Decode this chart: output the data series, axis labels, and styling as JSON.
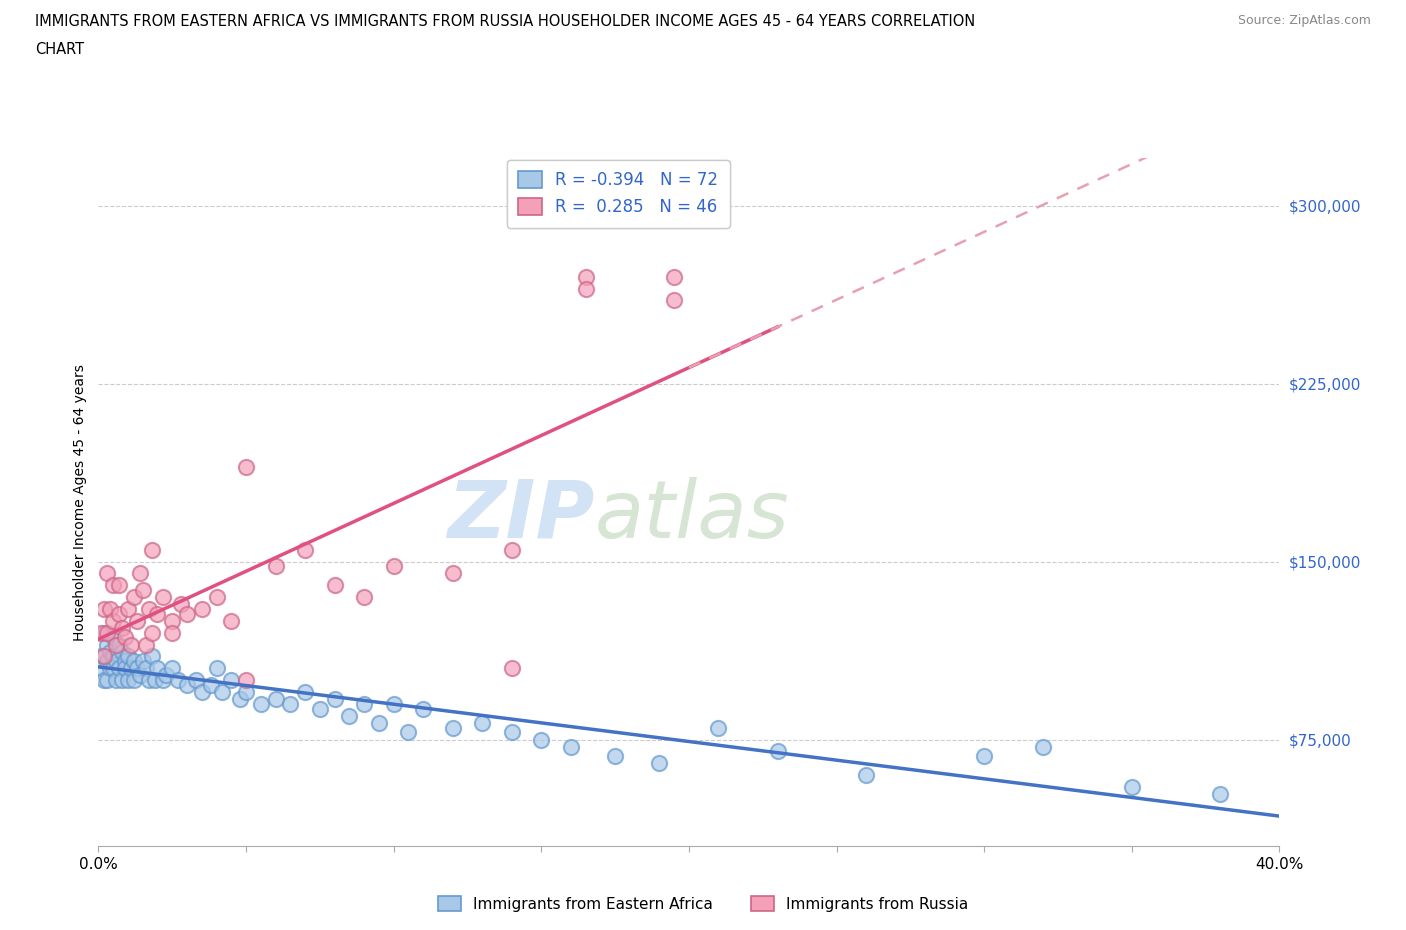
{
  "title_line1": "IMMIGRANTS FROM EASTERN AFRICA VS IMMIGRANTS FROM RUSSIA HOUSEHOLDER INCOME AGES 45 - 64 YEARS CORRELATION",
  "title_line2": "CHART",
  "source": "Source: ZipAtlas.com",
  "ylabel": "Householder Income Ages 45 - 64 years",
  "xlim": [
    0.0,
    0.4
  ],
  "ylim": [
    30000,
    320000
  ],
  "ytick_vals": [
    75000,
    150000,
    225000,
    300000
  ],
  "ytick_labels": [
    "$75,000",
    "$150,000",
    "$225,000",
    "$300,000"
  ],
  "xtick_vals": [
    0.0,
    0.05,
    0.1,
    0.15,
    0.2,
    0.25,
    0.3,
    0.35,
    0.4
  ],
  "xtick_labels": [
    "0.0%",
    "",
    "",
    "",
    "",
    "",
    "",
    "",
    "40.0%"
  ],
  "color_blue": "#a8c8e8",
  "color_pink": "#f4a0b8",
  "trendline_blue_color": "#4472c4",
  "trendline_pink_solid_color": "#e05080",
  "trendline_pink_dashed_color": "#e8a0b0",
  "legend_text_color": "#3366cc",
  "legend_r1": "R = -0.394   N = 72",
  "legend_r2": "R =  0.285   N = 46",
  "ea_scatter_x": [
    0.001,
    0.001,
    0.002,
    0.002,
    0.003,
    0.003,
    0.003,
    0.004,
    0.004,
    0.005,
    0.005,
    0.005,
    0.006,
    0.006,
    0.007,
    0.007,
    0.008,
    0.008,
    0.009,
    0.009,
    0.01,
    0.01,
    0.011,
    0.012,
    0.012,
    0.013,
    0.014,
    0.015,
    0.016,
    0.017,
    0.018,
    0.019,
    0.02,
    0.022,
    0.023,
    0.025,
    0.027,
    0.03,
    0.033,
    0.035,
    0.038,
    0.04,
    0.042,
    0.045,
    0.048,
    0.05,
    0.055,
    0.06,
    0.065,
    0.07,
    0.075,
    0.08,
    0.085,
    0.09,
    0.095,
    0.1,
    0.105,
    0.11,
    0.12,
    0.13,
    0.14,
    0.15,
    0.16,
    0.175,
    0.19,
    0.21,
    0.23,
    0.26,
    0.3,
    0.32,
    0.35,
    0.38
  ],
  "ea_scatter_y": [
    110000,
    105000,
    120000,
    100000,
    115000,
    108000,
    100000,
    112000,
    105000,
    118000,
    110000,
    105000,
    108000,
    100000,
    115000,
    105000,
    112000,
    100000,
    108000,
    105000,
    110000,
    100000,
    105000,
    108000,
    100000,
    105000,
    102000,
    108000,
    105000,
    100000,
    110000,
    100000,
    105000,
    100000,
    102000,
    105000,
    100000,
    98000,
    100000,
    95000,
    98000,
    105000,
    95000,
    100000,
    92000,
    95000,
    90000,
    92000,
    90000,
    95000,
    88000,
    92000,
    85000,
    90000,
    82000,
    90000,
    78000,
    88000,
    80000,
    82000,
    78000,
    75000,
    72000,
    68000,
    65000,
    80000,
    70000,
    60000,
    68000,
    72000,
    55000,
    52000
  ],
  "russia_scatter_x": [
    0.001,
    0.002,
    0.002,
    0.003,
    0.003,
    0.004,
    0.005,
    0.005,
    0.006,
    0.007,
    0.007,
    0.008,
    0.009,
    0.01,
    0.011,
    0.012,
    0.013,
    0.014,
    0.015,
    0.016,
    0.017,
    0.018,
    0.02,
    0.022,
    0.025,
    0.028,
    0.03,
    0.035,
    0.04,
    0.045,
    0.05,
    0.06,
    0.07,
    0.08,
    0.09,
    0.1,
    0.12,
    0.14,
    0.165,
    0.195,
    0.14,
    0.165,
    0.195,
    0.05,
    0.018,
    0.025
  ],
  "russia_scatter_y": [
    120000,
    130000,
    110000,
    145000,
    120000,
    130000,
    125000,
    140000,
    115000,
    128000,
    140000,
    122000,
    118000,
    130000,
    115000,
    135000,
    125000,
    145000,
    138000,
    115000,
    130000,
    120000,
    128000,
    135000,
    125000,
    132000,
    128000,
    130000,
    135000,
    125000,
    190000,
    148000,
    155000,
    140000,
    135000,
    148000,
    145000,
    155000,
    270000,
    270000,
    105000,
    265000,
    260000,
    100000,
    155000,
    120000
  ]
}
